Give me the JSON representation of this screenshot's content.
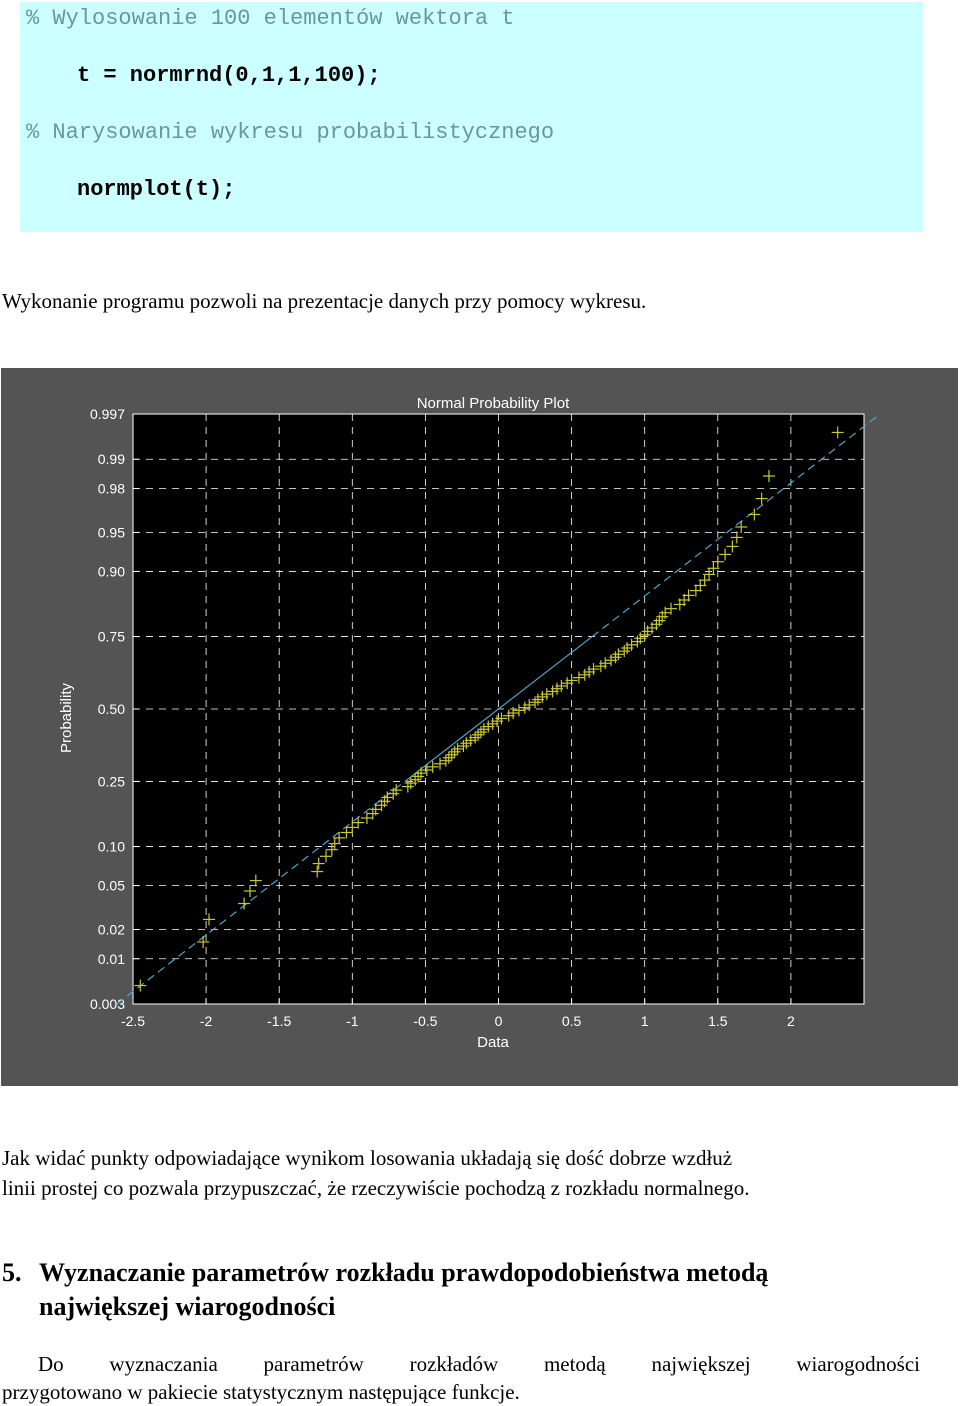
{
  "code": {
    "comment1": "% Wylosowanie 100 elementów wektora t",
    "line1": "t = normrnd(0,1,1,100);",
    "comment2": "% Narysowanie wykresu probabilistycznego",
    "line2": "normplot(t);"
  },
  "intro_text": "Wykonanie programu pozwoli na prezentacje danych przy pomocy wykresu.",
  "colors": {
    "code_bg": "#ccffff",
    "comment": "#669999",
    "figure_bg": "#545454",
    "axes_bg": "#000000",
    "marker": "#c8c832",
    "fit_line": "#4fa6c8"
  },
  "chart_data": {
    "type": "scatter",
    "title": "Normal Probability Plot",
    "xlabel": "Data",
    "ylabel": "Probability",
    "xlim": [
      -2.5,
      2.5
    ],
    "x_ticks": [
      "-2.5",
      "-2",
      "-1.5",
      "-1",
      "-0.5",
      "0",
      "0.5",
      "1",
      "1.5",
      "2"
    ],
    "x_tick_values": [
      -2.5,
      -2,
      -1.5,
      -1,
      -0.5,
      0,
      0.5,
      1,
      1.5,
      2
    ],
    "y_ticks": [
      "0.997",
      "0.99",
      "0.98",
      "0.95",
      "0.90",
      "0.75",
      "0.50",
      "0.25",
      "0.10",
      "0.05",
      "0.02",
      "0.01",
      "0.003"
    ],
    "y_tick_values": [
      0.997,
      0.99,
      0.98,
      0.95,
      0.9,
      0.75,
      0.5,
      0.25,
      0.1,
      0.05,
      0.02,
      0.01,
      0.003
    ],
    "grid": true,
    "reference_line": {
      "mean": 0.0,
      "std": 0.95
    },
    "x": [
      -2.45,
      -2.02,
      -1.98,
      -1.74,
      -1.7,
      -1.66,
      -1.24,
      -1.23,
      -1.18,
      -1.14,
      -1.12,
      -1.09,
      -1.04,
      -1.0,
      -0.96,
      -0.9,
      -0.86,
      -0.84,
      -0.8,
      -0.78,
      -0.76,
      -0.72,
      -0.7,
      -0.62,
      -0.6,
      -0.57,
      -0.55,
      -0.53,
      -0.49,
      -0.45,
      -0.4,
      -0.36,
      -0.34,
      -0.32,
      -0.3,
      -0.28,
      -0.24,
      -0.22,
      -0.19,
      -0.16,
      -0.14,
      -0.12,
      -0.1,
      -0.07,
      -0.04,
      -0.01,
      0.02,
      0.07,
      0.1,
      0.14,
      0.18,
      0.21,
      0.25,
      0.27,
      0.3,
      0.33,
      0.37,
      0.4,
      0.43,
      0.47,
      0.5,
      0.55,
      0.59,
      0.62,
      0.65,
      0.7,
      0.73,
      0.77,
      0.8,
      0.82,
      0.86,
      0.88,
      0.91,
      0.95,
      0.97,
      1.0,
      1.02,
      1.05,
      1.08,
      1.1,
      1.12,
      1.14,
      1.18,
      1.24,
      1.27,
      1.3,
      1.35,
      1.38,
      1.41,
      1.44,
      1.47,
      1.5,
      1.55,
      1.6,
      1.63,
      1.66,
      1.75,
      1.8,
      1.85,
      2.32
    ],
    "y": [
      0.005,
      0.015,
      0.025,
      0.035,
      0.045,
      0.055,
      0.065,
      0.075,
      0.085,
      0.095,
      0.105,
      0.115,
      0.125,
      0.135,
      0.145,
      0.155,
      0.165,
      0.175,
      0.185,
      0.195,
      0.205,
      0.215,
      0.225,
      0.235,
      0.245,
      0.255,
      0.265,
      0.275,
      0.285,
      0.295,
      0.305,
      0.315,
      0.325,
      0.335,
      0.345,
      0.355,
      0.365,
      0.375,
      0.385,
      0.395,
      0.405,
      0.415,
      0.425,
      0.435,
      0.445,
      0.455,
      0.465,
      0.475,
      0.485,
      0.495,
      0.505,
      0.515,
      0.525,
      0.535,
      0.545,
      0.555,
      0.565,
      0.575,
      0.585,
      0.595,
      0.605,
      0.615,
      0.625,
      0.635,
      0.645,
      0.655,
      0.665,
      0.675,
      0.685,
      0.695,
      0.705,
      0.715,
      0.725,
      0.735,
      0.745,
      0.755,
      0.765,
      0.775,
      0.785,
      0.795,
      0.805,
      0.815,
      0.825,
      0.835,
      0.845,
      0.855,
      0.865,
      0.875,
      0.885,
      0.895,
      0.905,
      0.915,
      0.925,
      0.935,
      0.945,
      0.955,
      0.965,
      0.975,
      0.985,
      0.995
    ]
  },
  "conclusion_line1": "Jak widać punkty odpowiadające wynikom losowania układają się dość dobrze wzdłuż",
  "conclusion_line2": "linii prostej co pozwala przypuszczać, że rzeczywiście pochodzą z rozkładu normalnego.",
  "section": {
    "number": "5.",
    "title_line1": "Wyznaczanie parametrów rozkładu prawdopodobieństwa metodą",
    "title_line2": "największej wiarogodności"
  },
  "final_line1": "Do wyznaczania parametrów rozkładów metodą największej wiarogodności",
  "final_line2": "przygotowano w pakiecie statystycznym następujące funkcje."
}
